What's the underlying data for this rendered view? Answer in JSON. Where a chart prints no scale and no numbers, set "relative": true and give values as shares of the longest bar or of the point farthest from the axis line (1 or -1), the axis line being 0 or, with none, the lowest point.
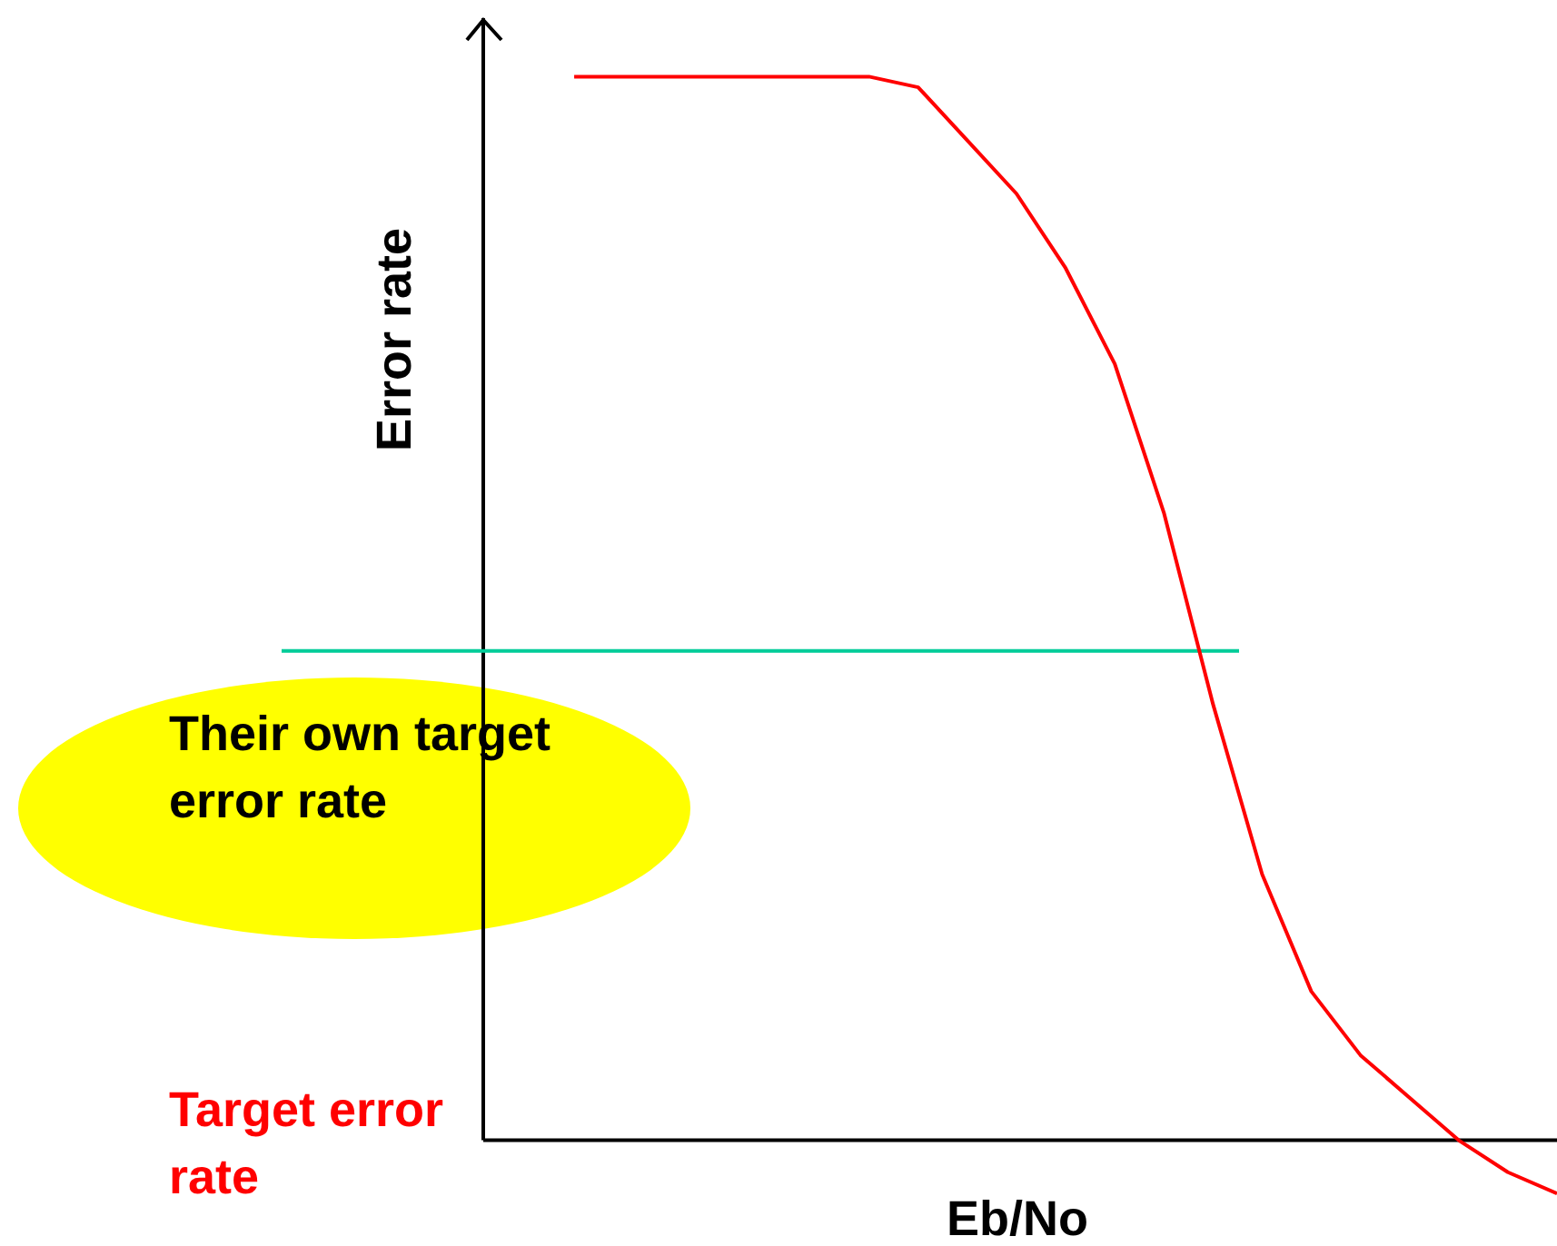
{
  "chart_data": {
    "type": "line",
    "relative": true,
    "xlabel": "Eb/No",
    "ylabel": "Error rate",
    "categories": [
      null,
      null,
      null,
      null,
      null,
      null,
      null,
      null,
      null,
      null,
      null,
      null,
      null,
      null,
      null,
      null,
      null,
      null,
      null,
      null,
      null
    ],
    "series": [
      {
        "color": "#ff0000",
        "values": [
          1,
          1,
          1,
          1,
          1,
          1,
          1,
          0.99,
          0.94,
          0.89,
          0.82,
          0.73,
          0.59,
          0.41,
          0.25,
          0.14,
          0.08,
          0.04,
          0,
          -0.03,
          -0.05
        ]
      }
    ],
    "ref_lines": [
      {
        "axis": "y",
        "value": 0.46,
        "label": "Their own target error rate",
        "color": "#00cc99"
      }
    ],
    "annotations": [
      "Target error rate"
    ]
  }
}
